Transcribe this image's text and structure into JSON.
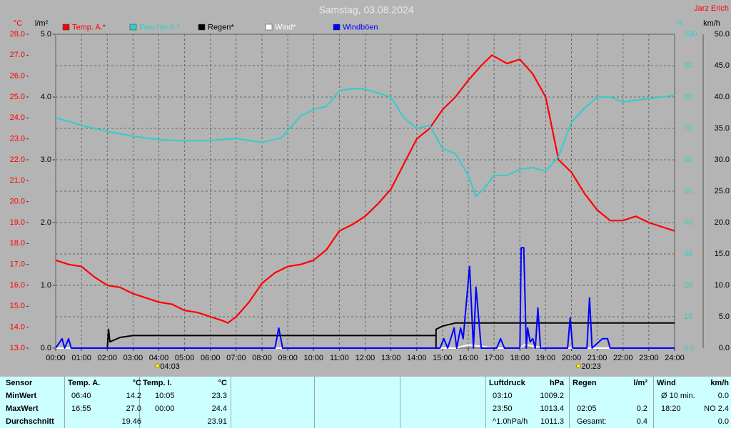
{
  "chart_data": {
    "type": "line",
    "title": "Samstag, 03.08.2024",
    "corner_note": "Jarz Erich",
    "ylabel": "°C",
    "y3label": "l/m²",
    "y2label": "%",
    "y4label": "km/h",
    "xlim": [
      0,
      24
    ],
    "xticks": [
      {
        "value": 0,
        "label": "00:00"
      },
      {
        "value": 1,
        "label": "01:00"
      },
      {
        "value": 2,
        "label": "02:00"
      },
      {
        "value": 3,
        "label": "03:00"
      },
      {
        "value": 4,
        "label": "04:00"
      },
      {
        "value": 5,
        "label": "05:00"
      },
      {
        "value": 6,
        "label": "06:00"
      },
      {
        "value": 7,
        "label": "07:00"
      },
      {
        "value": 8,
        "label": "08:00"
      },
      {
        "value": 9,
        "label": "09:00"
      },
      {
        "value": 10,
        "label": "10:00"
      },
      {
        "value": 11,
        "label": "11:00"
      },
      {
        "value": 12,
        "label": "12:00"
      },
      {
        "value": 13,
        "label": "13:00"
      },
      {
        "value": 14,
        "label": "14:00"
      },
      {
        "value": 15,
        "label": "15:00"
      },
      {
        "value": 16,
        "label": "16:00"
      },
      {
        "value": 17,
        "label": "17:00"
      },
      {
        "value": 18,
        "label": "18:00"
      },
      {
        "value": 19,
        "label": "19:00"
      },
      {
        "value": 20,
        "label": "20:00"
      },
      {
        "value": 21,
        "label": "21:00"
      },
      {
        "value": 22,
        "label": "22:00"
      },
      {
        "value": 23,
        "label": "23:00"
      },
      {
        "value": 24,
        "label": "24:00"
      }
    ],
    "ylim": [
      13,
      28
    ],
    "yticks": [
      {
        "value": 13,
        "label": "13.0"
      },
      {
        "value": 14,
        "label": "14.0"
      },
      {
        "value": 15,
        "label": "15.0"
      },
      {
        "value": 16,
        "label": "16.0"
      },
      {
        "value": 17,
        "label": "17.0"
      },
      {
        "value": 18,
        "label": "18.0"
      },
      {
        "value": 19,
        "label": "19.0"
      },
      {
        "value": 20,
        "label": "20.0"
      },
      {
        "value": 21,
        "label": "21.0"
      },
      {
        "value": 22,
        "label": "22.0"
      },
      {
        "value": 23,
        "label": "23.0"
      },
      {
        "value": 24,
        "label": "24.0"
      },
      {
        "value": 25,
        "label": "25.0"
      },
      {
        "value": 26,
        "label": "26.0"
      },
      {
        "value": 27,
        "label": "27.0"
      },
      {
        "value": 28,
        "label": "28.0"
      }
    ],
    "y3lim": [
      0,
      5
    ],
    "y3ticks": [
      {
        "value": 0,
        "label": "0.0"
      },
      {
        "value": 1,
        "label": "1.0"
      },
      {
        "value": 2,
        "label": "2.0"
      },
      {
        "value": 3,
        "label": "3.0"
      },
      {
        "value": 4,
        "label": "4.0"
      },
      {
        "value": 5,
        "label": "5.0"
      }
    ],
    "y2lim": [
      0,
      100
    ],
    "y2ticks": [
      {
        "value": 0,
        "label": "0.0"
      },
      10,
      20,
      30,
      40,
      50,
      60,
      70,
      80,
      90,
      100
    ],
    "y4lim": [
      0,
      50
    ],
    "y4ticks": [
      {
        "value": 0,
        "label": "0.0"
      },
      {
        "value": 5,
        "label": "5.0"
      },
      {
        "value": 10,
        "label": "10.0"
      },
      {
        "value": 15,
        "label": "15.0"
      },
      {
        "value": 20,
        "label": "20.0"
      },
      {
        "value": 25,
        "label": "25.0"
      },
      {
        "value": 30,
        "label": "30.0"
      },
      {
        "value": 35,
        "label": "35.0"
      },
      {
        "value": 40,
        "label": "40.0"
      },
      {
        "value": 45,
        "label": "45.0"
      },
      {
        "value": 50,
        "label": "50.0"
      }
    ],
    "grid": true,
    "sunrise": "04:03",
    "sunset": "20:23",
    "series": [
      {
        "name": "Temp. A.*",
        "color": "#ff0000",
        "axis": "y",
        "x": [
          0,
          0.5,
          1,
          1.5,
          2,
          2.5,
          3,
          3.5,
          4,
          4.5,
          5,
          5.5,
          6,
          6.5,
          6.67,
          7,
          7.5,
          8,
          8.5,
          9,
          9.5,
          10,
          10.5,
          11,
          11.5,
          12,
          12.5,
          13,
          13.5,
          14,
          14.5,
          15,
          15.5,
          16,
          16.5,
          16.92,
          17.5,
          18,
          18.5,
          19,
          19.5,
          20,
          20.5,
          21,
          21.5,
          22,
          22.5,
          23,
          23.5,
          24
        ],
        "values": [
          17.2,
          17.0,
          16.9,
          16.4,
          16.0,
          15.9,
          15.6,
          15.4,
          15.2,
          15.1,
          14.8,
          14.7,
          14.5,
          14.3,
          14.2,
          14.5,
          15.2,
          16.1,
          16.6,
          16.9,
          17.0,
          17.2,
          17.7,
          18.6,
          18.9,
          19.3,
          19.9,
          20.6,
          21.8,
          23.0,
          23.5,
          24.4,
          25.0,
          25.8,
          26.5,
          27.0,
          26.6,
          26.8,
          26.1,
          25.0,
          22.0,
          21.4,
          20.4,
          19.6,
          19.1,
          19.1,
          19.3,
          19.0,
          18.8,
          18.6
        ]
      },
      {
        "name": "Feuchte A.*",
        "color": "#33cccc",
        "axis": "y2",
        "x": [
          0,
          1,
          2,
          3,
          4,
          5,
          6,
          7,
          8,
          8.75,
          9.5,
          10,
          10.5,
          11,
          11.5,
          12,
          13,
          13.5,
          14,
          14.5,
          15,
          15.5,
          16,
          16.3,
          16.6,
          17,
          17.5,
          18,
          18.5,
          19,
          19.5,
          20,
          20.5,
          21,
          21.5,
          22,
          23,
          24
        ],
        "values": [
          73.4,
          71,
          69,
          67.5,
          66.4,
          66,
          66.2,
          66.8,
          65.5,
          67,
          74,
          76,
          77,
          82,
          82.7,
          82.5,
          80,
          73.4,
          70,
          71,
          63.6,
          62,
          55,
          48.4,
          50.7,
          55,
          55,
          57,
          57.5,
          56.4,
          61,
          72,
          76.4,
          80,
          80,
          78.4,
          79.5,
          80.5
        ]
      },
      {
        "name": "Regen*",
        "color": "#000000",
        "axis": "y3",
        "x": [
          0,
          2,
          2.05,
          2.1,
          2.5,
          3,
          14.75,
          14.75,
          14.75,
          15,
          15.5,
          24
        ],
        "values": [
          0,
          0,
          0.3,
          0.1,
          0.17,
          0.2,
          0.2,
          0,
          0.3,
          0.35,
          0.4,
          0.4
        ]
      },
      {
        "name": "Wind*",
        "color": "#ffffff",
        "axis": "y4",
        "x": [
          0,
          15.5,
          16,
          16.5,
          17,
          18,
          18.2,
          18.5,
          19,
          24
        ],
        "values": [
          0,
          0,
          0.5,
          0.3,
          0,
          0,
          0.6,
          0.3,
          0,
          0
        ]
      },
      {
        "name": "Windböen",
        "color": "#0000ff",
        "axis": "y4",
        "x": [
          0,
          0.25,
          0.35,
          0.5,
          0.6,
          8.5,
          8.65,
          8.8,
          14.9,
          15.05,
          15.2,
          15.45,
          15.55,
          15.7,
          15.8,
          16.05,
          16.2,
          16.3,
          16.5,
          17.1,
          17.25,
          17.4,
          18,
          18.05,
          18.15,
          18.25,
          18.3,
          18.4,
          18.5,
          18.6,
          18.7,
          18.8,
          19.85,
          19.95,
          20.05,
          20.6,
          20.7,
          20.8,
          21.2,
          21.4,
          21.5,
          24
        ],
        "values": [
          0,
          1.5,
          0,
          1.5,
          0,
          0,
          3.2,
          0,
          0,
          1.5,
          0,
          3.2,
          0,
          3.2,
          1.5,
          13,
          0,
          9.7,
          0,
          0,
          1.5,
          0,
          0,
          16,
          16,
          0,
          3.2,
          1,
          1.5,
          0,
          6.4,
          0,
          0,
          4.8,
          0,
          0,
          8,
          0,
          1.5,
          1.5,
          0,
          0
        ]
      }
    ]
  },
  "table": {
    "rows": [
      [
        "Sensor",
        "Temp. A.",
        "°C",
        "Temp. I.",
        "°C",
        "Luftdruck",
        "hPa",
        "Regen",
        "l/m²",
        "Wind",
        "km/h"
      ],
      [
        "MinWert",
        "06:40",
        "14.2",
        "10:05",
        "23.3",
        "03:10",
        "1009.2",
        null,
        null,
        "Ø 10 min.",
        "0.0"
      ],
      [
        "MaxWert",
        "16:55",
        "27.0",
        "00:00",
        "24.4",
        "23:50",
        "1013.4",
        "02:05",
        "0.2",
        "18:20",
        "NO 2.4"
      ],
      [
        "Durchschnitt",
        null,
        "19.46",
        null,
        "23.91",
        "^1.0hPa/h",
        "1011.3",
        "Gesamt:",
        "0.4",
        null,
        "0.0"
      ]
    ]
  }
}
